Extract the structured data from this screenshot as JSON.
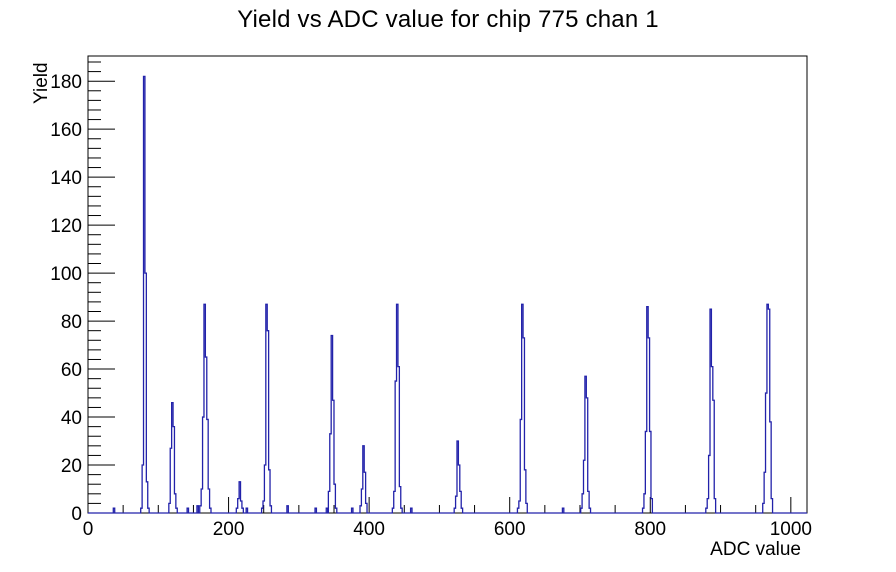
{
  "page": {
    "background": "#ffffff"
  },
  "chart_data": {
    "type": "bar",
    "title": "Yield vs ADC value for chip 775 chan 1",
    "xlabel": "ADC value",
    "ylabel": "Yield",
    "xlim": [
      0,
      1023
    ],
    "ylim": [
      0,
      190.5
    ],
    "x_major_ticks": [
      0,
      200,
      400,
      600,
      800,
      1000
    ],
    "x_minor_step": 50,
    "y_major_ticks": [
      0,
      20,
      40,
      60,
      80,
      100,
      120,
      140,
      160,
      180
    ],
    "y_minor_step": 4,
    "grid": false,
    "legend_position": "none",
    "line_color": "#2222aa",
    "axis_color": "#000000",
    "bin_width": 2,
    "bins": [
      [
        37,
        2
      ],
      [
        76,
        2
      ],
      [
        78,
        20
      ],
      [
        80,
        182
      ],
      [
        82,
        100
      ],
      [
        84,
        13
      ],
      [
        86,
        2
      ],
      [
        116,
        4
      ],
      [
        118,
        27
      ],
      [
        120,
        46
      ],
      [
        122,
        36
      ],
      [
        124,
        8
      ],
      [
        126,
        2
      ],
      [
        142,
        2
      ],
      [
        156,
        3
      ],
      [
        160,
        3
      ],
      [
        162,
        10
      ],
      [
        164,
        40
      ],
      [
        166,
        87
      ],
      [
        168,
        65
      ],
      [
        170,
        39
      ],
      [
        172,
        10
      ],
      [
        174,
        2
      ],
      [
        212,
        2
      ],
      [
        214,
        6
      ],
      [
        216,
        13
      ],
      [
        218,
        5
      ],
      [
        220,
        2
      ],
      [
        226,
        2
      ],
      [
        248,
        2
      ],
      [
        250,
        5
      ],
      [
        252,
        20
      ],
      [
        254,
        87
      ],
      [
        256,
        76
      ],
      [
        258,
        18
      ],
      [
        260,
        3
      ],
      [
        284,
        3
      ],
      [
        324,
        2
      ],
      [
        340,
        2
      ],
      [
        343,
        9
      ],
      [
        345,
        33
      ],
      [
        347,
        74
      ],
      [
        349,
        47
      ],
      [
        351,
        12
      ],
      [
        353,
        2
      ],
      [
        376,
        2
      ],
      [
        388,
        3
      ],
      [
        390,
        10
      ],
      [
        392,
        28
      ],
      [
        394,
        17
      ],
      [
        396,
        4
      ],
      [
        434,
        2
      ],
      [
        436,
        9
      ],
      [
        438,
        55
      ],
      [
        440,
        87
      ],
      [
        442,
        61
      ],
      [
        444,
        11
      ],
      [
        446,
        2
      ],
      [
        460,
        2
      ],
      [
        522,
        2
      ],
      [
        524,
        7
      ],
      [
        526,
        30
      ],
      [
        528,
        20
      ],
      [
        530,
        9
      ],
      [
        532,
        2
      ],
      [
        612,
        2
      ],
      [
        614,
        5
      ],
      [
        616,
        39
      ],
      [
        618,
        87
      ],
      [
        620,
        73
      ],
      [
        622,
        18
      ],
      [
        624,
        4
      ],
      [
        676,
        2
      ],
      [
        702,
        2
      ],
      [
        704,
        8
      ],
      [
        706,
        22
      ],
      [
        708,
        57
      ],
      [
        710,
        48
      ],
      [
        712,
        9
      ],
      [
        714,
        2
      ],
      [
        790,
        2
      ],
      [
        792,
        8
      ],
      [
        794,
        34
      ],
      [
        796,
        86
      ],
      [
        798,
        73
      ],
      [
        800,
        34
      ],
      [
        802,
        6
      ],
      [
        880,
        2
      ],
      [
        882,
        6
      ],
      [
        884,
        24
      ],
      [
        886,
        85
      ],
      [
        888,
        61
      ],
      [
        890,
        47
      ],
      [
        892,
        6
      ],
      [
        961,
        4
      ],
      [
        963,
        17
      ],
      [
        965,
        50
      ],
      [
        967,
        87
      ],
      [
        969,
        85
      ],
      [
        971,
        38
      ],
      [
        973,
        6
      ]
    ]
  }
}
